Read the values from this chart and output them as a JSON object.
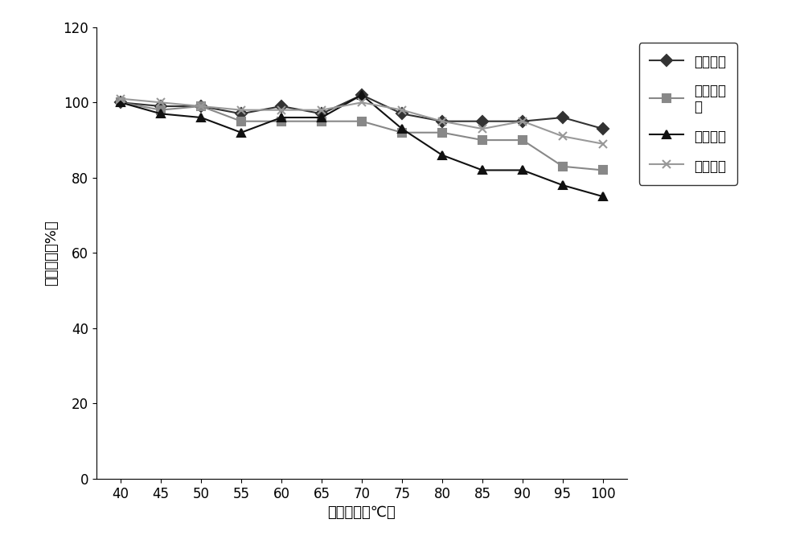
{
  "x": [
    40,
    45,
    50,
    55,
    60,
    65,
    70,
    75,
    80,
    85,
    90,
    95,
    100
  ],
  "series": {
    "木聚糖酶": [
      100,
      99,
      99,
      97,
      99,
      97,
      102,
      97,
      95,
      95,
      95,
      96,
      93
    ],
    "甘露聚糖酶": [
      100,
      98,
      99,
      95,
      95,
      95,
      95,
      92,
      92,
      90,
      90,
      83,
      82
    ],
    "葡聚糖酶": [
      100,
      97,
      96,
      92,
      96,
      96,
      102,
      93,
      86,
      82,
      82,
      78,
      75
    ],
    "纤维素酶": [
      101,
      100,
      99,
      98,
      98,
      98,
      100,
      98,
      95,
      93,
      95,
      91,
      89
    ]
  },
  "colors": {
    "木聚糖酶": "#333333",
    "甘露聚糖酶": "#888888",
    "葡聚糖酶": "#111111",
    "纤维素酶": "#999999"
  },
  "markers": {
    "木聚糖酶": "D",
    "甘露聚糖酶": "s",
    "葡聚糖酶": "^",
    "纤维素酶": "x"
  },
  "ylabel": "相对酶活（%）",
  "xlabel": "制粒温度（℃）",
  "ylim": [
    0,
    120
  ],
  "yticks": [
    0,
    20,
    40,
    60,
    80,
    100,
    120
  ],
  "xticks": [
    40,
    45,
    50,
    55,
    60,
    65,
    70,
    75,
    80,
    85,
    90,
    95,
    100
  ],
  "background_color": "#ffffff",
  "linewidth": 1.5,
  "markersize": 7
}
